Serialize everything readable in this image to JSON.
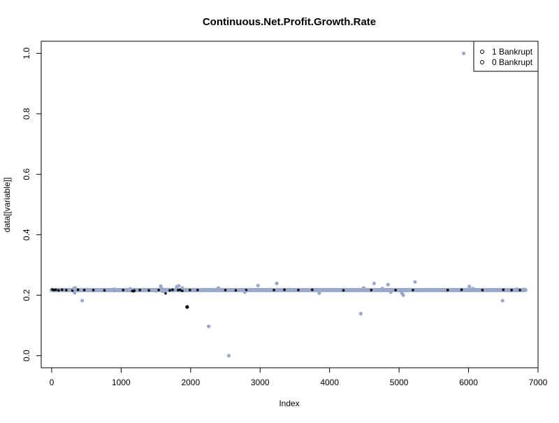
{
  "chart_data": {
    "type": "scatter",
    "title": "Continuous.Net.Profit.Growth.Rate",
    "xlabel": "Index",
    "ylabel": "data[[variable]]",
    "xlim": [
      -150,
      7000
    ],
    "ylim": [
      -0.04,
      1.04
    ],
    "x_ticks": [
      0,
      1000,
      2000,
      3000,
      4000,
      5000,
      6000,
      7000
    ],
    "y_ticks": [
      0.0,
      0.2,
      0.4,
      0.6,
      0.8,
      1.0
    ],
    "x_tick_labels": [
      "0",
      "1000",
      "2000",
      "3000",
      "4000",
      "5000",
      "6000",
      "7000"
    ],
    "y_tick_labels": [
      "0.0",
      "0.2",
      "0.4",
      "0.6",
      "0.8",
      "1.0"
    ],
    "grid": false,
    "legend_position": "top-right",
    "legend": [
      {
        "label": "1 Bankrupt",
        "color": "#000000"
      },
      {
        "label": "0 Bankrupt",
        "color": "#9aa9c9"
      }
    ],
    "baseline": {
      "x_start": 0,
      "x_end": 6818,
      "y": 0.217
    },
    "series": [
      {
        "name": "1 Bankrupt",
        "color": "#000000",
        "points": [
          [
            10,
            0.219
          ],
          [
            30,
            0.217
          ],
          [
            60,
            0.218
          ],
          [
            100,
            0.216
          ],
          [
            150,
            0.218
          ],
          [
            210,
            0.217
          ],
          [
            300,
            0.216
          ],
          [
            380,
            0.218
          ],
          [
            470,
            0.217
          ],
          [
            600,
            0.217
          ],
          [
            760,
            0.216
          ],
          [
            900,
            0.218
          ],
          [
            1030,
            0.217
          ],
          [
            1160,
            0.214
          ],
          [
            1180,
            0.213
          ],
          [
            1190,
            0.215
          ],
          [
            1270,
            0.217
          ],
          [
            1400,
            0.216
          ],
          [
            1540,
            0.217
          ],
          [
            1640,
            0.206
          ],
          [
            1700,
            0.216
          ],
          [
            1740,
            0.218
          ],
          [
            1820,
            0.217
          ],
          [
            1850,
            0.218
          ],
          [
            1880,
            0.214
          ],
          [
            1950,
            0.161
          ],
          [
            1990,
            0.217
          ],
          [
            2100,
            0.217
          ],
          [
            2500,
            0.217
          ],
          [
            2650,
            0.216
          ],
          [
            2800,
            0.217
          ],
          [
            3200,
            0.217
          ],
          [
            3350,
            0.218
          ],
          [
            3550,
            0.217
          ],
          [
            3750,
            0.218
          ],
          [
            4200,
            0.216
          ],
          [
            4600,
            0.217
          ],
          [
            4950,
            0.217
          ],
          [
            5200,
            0.217
          ],
          [
            5700,
            0.217
          ],
          [
            5900,
            0.218
          ],
          [
            6200,
            0.217
          ],
          [
            6500,
            0.218
          ],
          [
            6620,
            0.217
          ],
          [
            6740,
            0.217
          ]
        ]
      },
      {
        "name": "0 Bankrupt",
        "color": "#9aa9c9",
        "points": [
          [
            320,
            0.222
          ],
          [
            330,
            0.208
          ],
          [
            340,
            0.224
          ],
          [
            440,
            0.182
          ],
          [
            900,
            0.22
          ],
          [
            1130,
            0.221
          ],
          [
            1500,
            0.214
          ],
          [
            1570,
            0.23
          ],
          [
            1580,
            0.223
          ],
          [
            1600,
            0.213
          ],
          [
            1800,
            0.228
          ],
          [
            1830,
            0.231
          ],
          [
            1880,
            0.224
          ],
          [
            2260,
            0.097
          ],
          [
            2400,
            0.224
          ],
          [
            2550,
            0.0
          ],
          [
            2780,
            0.21
          ],
          [
            2970,
            0.232
          ],
          [
            3240,
            0.239
          ],
          [
            3850,
            0.207
          ],
          [
            4450,
            0.139
          ],
          [
            4490,
            0.224
          ],
          [
            4640,
            0.239
          ],
          [
            4760,
            0.222
          ],
          [
            4840,
            0.235
          ],
          [
            4880,
            0.21
          ],
          [
            5040,
            0.207
          ],
          [
            5060,
            0.2
          ],
          [
            5230,
            0.244
          ],
          [
            5930,
            1.0
          ],
          [
            6010,
            0.229
          ],
          [
            6060,
            0.222
          ],
          [
            6490,
            0.182
          ],
          [
            6700,
            0.22
          ],
          [
            6800,
            0.219
          ]
        ]
      }
    ]
  }
}
